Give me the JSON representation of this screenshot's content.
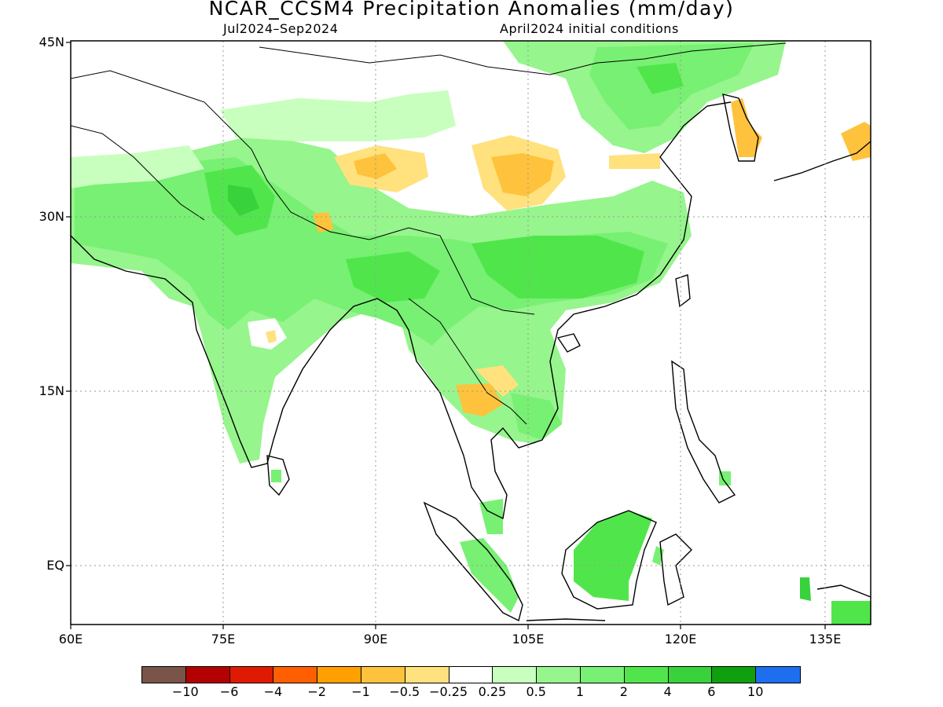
{
  "title": "NCAR_CCSM4 Precipitation Anomalies (mm/day)",
  "subtitle_left": "Jul2024–Sep2024",
  "subtitle_right": "April2024 initial conditions",
  "lat_labels": [
    "45N",
    "30N",
    "15N",
    "EQ"
  ],
  "lon_labels": [
    "60E",
    "75E",
    "90E",
    "105E",
    "120E",
    "135E"
  ],
  "colorbar": {
    "colors": [
      "#7a5448",
      "#b40000",
      "#e01a00",
      "#ff5f00",
      "#ffa000",
      "#ffc23c",
      "#ffe17d",
      "#ffffff",
      "#c8ffbe",
      "#96f58c",
      "#78f073",
      "#50e64b",
      "#37d23c",
      "#0fa00f",
      "#1e6ef0"
    ],
    "labels": [
      "−10",
      "−6",
      "−4",
      "−2",
      "−1",
      "−0.5",
      "−0.25",
      "0.25",
      "0.5",
      "1",
      "2",
      "4",
      "6",
      "10"
    ]
  }
}
